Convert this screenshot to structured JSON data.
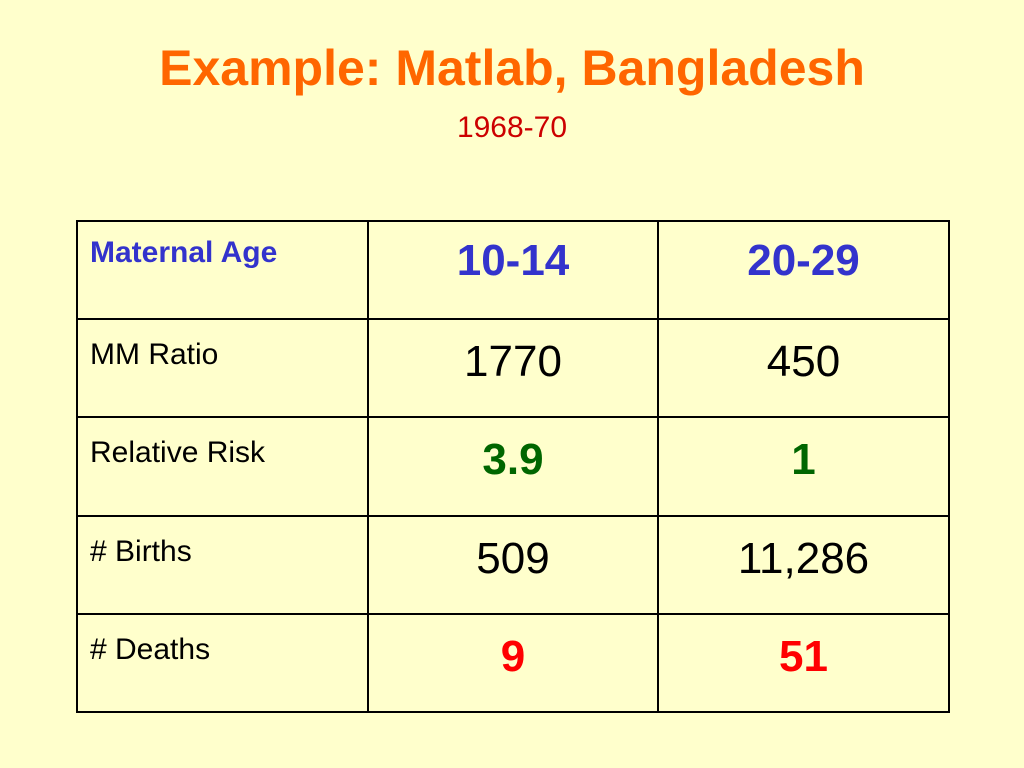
{
  "slide": {
    "title": "Example: Matlab, Bangladesh",
    "subtitle": "1968-70"
  },
  "table": {
    "header": {
      "label": "Maternal Age",
      "col1": "10-14",
      "col2": "20-29"
    },
    "rows": [
      {
        "label": "MM Ratio",
        "col1": "1770",
        "col2": "450"
      },
      {
        "label": "Relative Risk",
        "col1": "3.9",
        "col2": "1"
      },
      {
        "label": "# Births",
        "col1": "509",
        "col2": "11,286"
      },
      {
        "label": "# Deaths",
        "col1": "9",
        "col2": "51"
      }
    ]
  },
  "colors": {
    "background": "#ffffcc",
    "title": "#ff6600",
    "subtitle": "#cc0000",
    "header": "#3333cc",
    "relative_risk": "#006600",
    "deaths": "#ff0000"
  }
}
